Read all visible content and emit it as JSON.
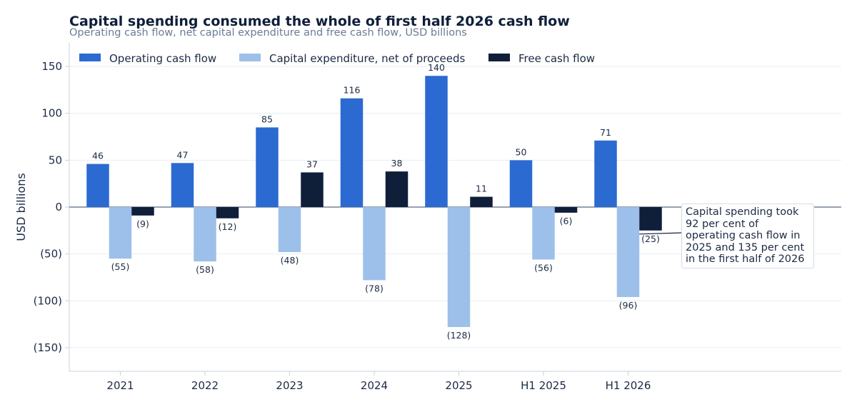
{
  "title": "Capital spending consumed the whole of first half 2026 cash flow",
  "subtitle": "Operating cash flow, net capital expenditure and free cash flow, USD billions",
  "annotation": "Capital spending took 92 per cent of operating cash flow in 2025 and 135 per cent in the first half of 2026",
  "colors": {
    "operating": "#2b6ad0",
    "capex": "#9dc0ea",
    "free": "#0f1f3a",
    "grid": "#e8edf3",
    "axis": "#c9d2de",
    "zero": "#5b6b80",
    "text": "#1b2a44"
  },
  "chart_data": {
    "type": "bar",
    "title": "Capital spending consumed the whole of first half 2026 cash flow",
    "subtitle": "Operating cash flow, net capital expenditure and free cash flow, USD billions",
    "xlabel": "",
    "ylabel": "USD billions",
    "categories": [
      "2021",
      "2022",
      "2023",
      "2024",
      "2025",
      "H1 2025",
      "H1 2026"
    ],
    "series": [
      {
        "name": "Operating cash flow",
        "values": [
          46,
          47,
          85,
          116,
          140,
          50,
          71
        ]
      },
      {
        "name": "Capital expenditure, net of proceeds",
        "values": [
          -55,
          -58,
          -48,
          -78,
          -128,
          -56,
          -96
        ]
      },
      {
        "name": "Free cash flow",
        "values": [
          -9,
          -12,
          37,
          38,
          11,
          -6,
          -25
        ]
      }
    ],
    "data_labels": [
      [
        "46",
        "47",
        "85",
        "116",
        "140",
        "50",
        "71"
      ],
      [
        "(55)",
        "(58)",
        "(48)",
        "(78)",
        "(128)",
        "(56)",
        "(96)"
      ],
      [
        "(9)",
        "(12)",
        "37",
        "38",
        "11",
        "(6)",
        "(25)"
      ]
    ],
    "ylim": [
      -175,
      175
    ],
    "yticks": [
      150,
      100,
      50,
      0,
      -50,
      -100,
      -150
    ],
    "ytick_labels": [
      "150",
      "100",
      "50",
      "0",
      "(50)",
      "(100)",
      "(150)"
    ],
    "grid": true,
    "legend_position": "top-left"
  }
}
